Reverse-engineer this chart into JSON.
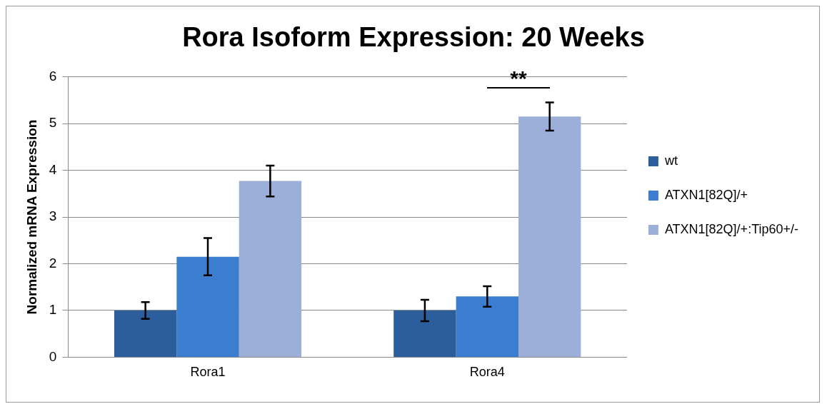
{
  "chart_data": {
    "type": "bar",
    "title": "Rora Isoform Expression: 20 Weeks",
    "ylabel": "Normalized mRNA Expression",
    "categories": [
      "Rora1",
      "Rora4"
    ],
    "series": [
      {
        "name": "wt",
        "color": "#2c5d9c",
        "values": [
          1.0,
          1.0
        ],
        "errors": [
          0.18,
          0.23
        ]
      },
      {
        "name": "ATXN1[82Q]/+",
        "color": "#3b7dcf",
        "values": [
          2.15,
          1.3
        ],
        "errors": [
          0.4,
          0.22
        ]
      },
      {
        "name": "ATXN1[82Q]/+:Tip60+/-",
        "color": "#9bafd9",
        "values": [
          3.77,
          5.15
        ],
        "errors": [
          0.33,
          0.3
        ]
      }
    ],
    "ylim": [
      0,
      6
    ],
    "yticks": [
      0,
      1,
      2,
      3,
      4,
      5,
      6
    ],
    "grid": "y",
    "legend": "right",
    "annotations": [
      "**"
    ]
  }
}
